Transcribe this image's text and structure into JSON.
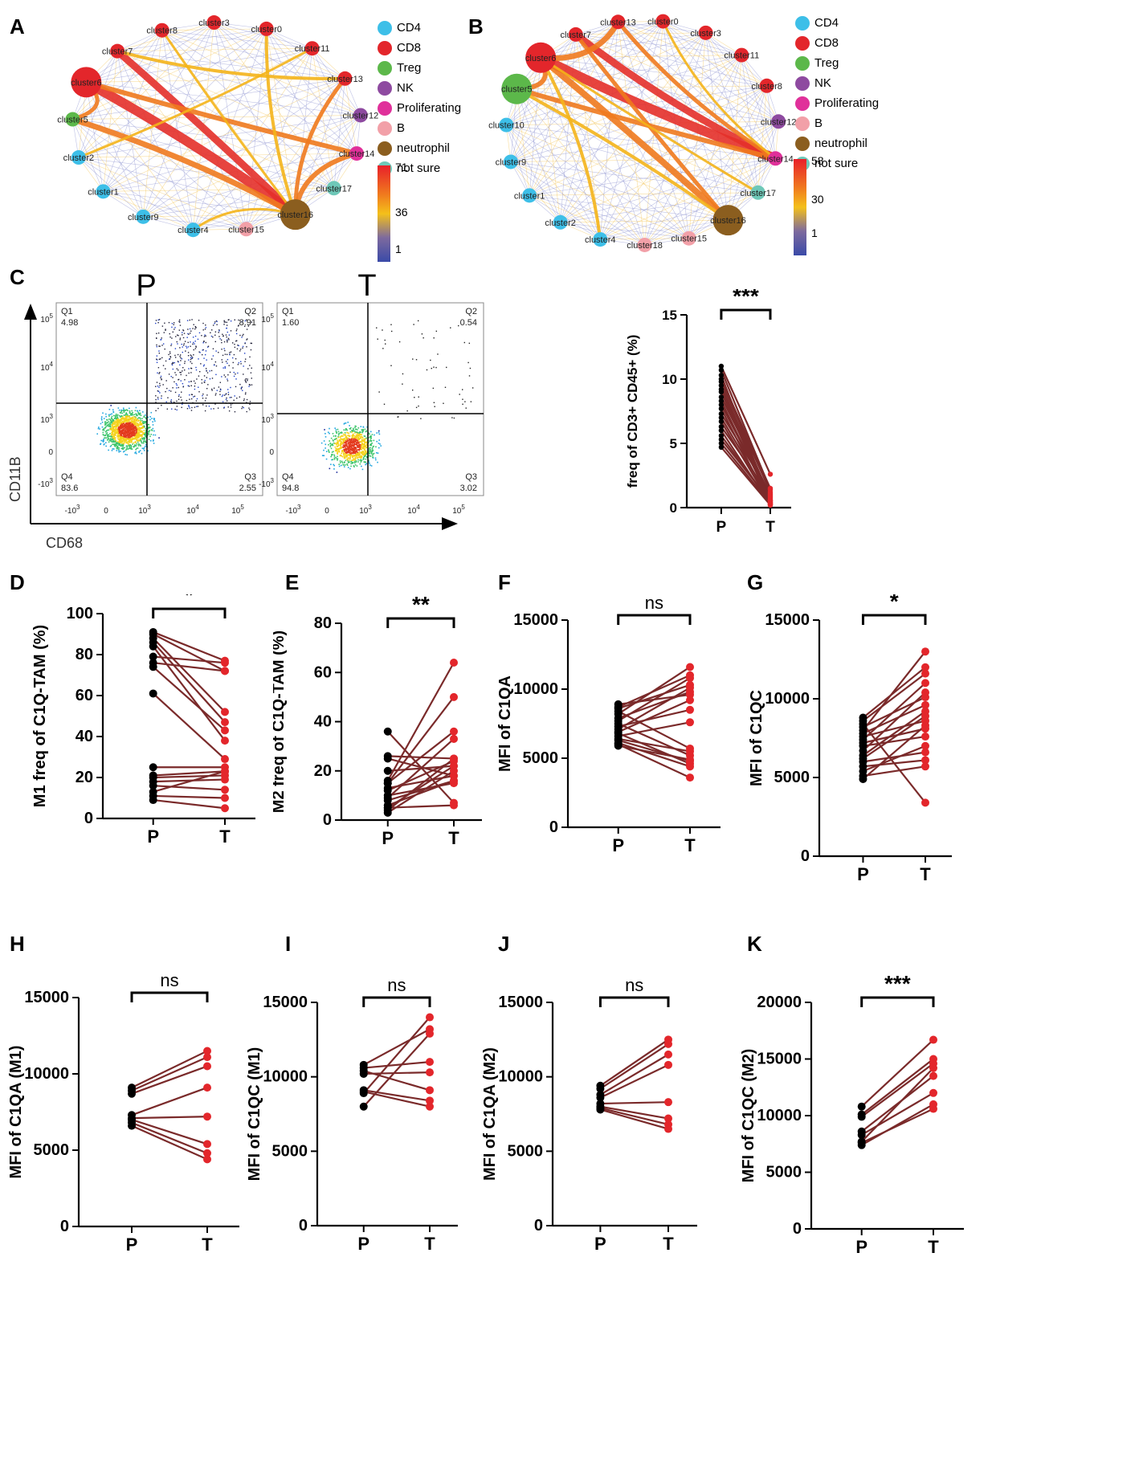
{
  "panels": {
    "A": "A",
    "B": "B",
    "C": "C",
    "D": "D",
    "E": "E",
    "F": "F",
    "G": "G",
    "H": "H",
    "I": "I",
    "J": "J",
    "K": "K"
  },
  "colors": {
    "CD4": "#3dbfe8",
    "CD8": "#e3262b",
    "Treg": "#5cb84a",
    "NK": "#8e4aa0",
    "Proliferating": "#e0309a",
    "B": "#f2a0a8",
    "neutrophil": "#8b5e1f",
    "not sure": "#6ec8b8",
    "P": "#000000",
    "T": "#e3262b",
    "line": "#7a2a2a"
  },
  "network_legend": [
    "CD4",
    "CD8",
    "Treg",
    "NK",
    "Proliferating",
    "B",
    "neutrophil",
    "not sure"
  ],
  "networkA": {
    "colorbar": {
      "max": "71",
      "mid": "36",
      "min": "1"
    },
    "nodes": [
      {
        "label": "cluster0",
        "type": "CD8"
      },
      {
        "label": "cluster11",
        "type": "CD8"
      },
      {
        "label": "cluster13",
        "type": "CD8"
      },
      {
        "label": "cluster12",
        "type": "NK"
      },
      {
        "label": "cluster14",
        "type": "Proliferating"
      },
      {
        "label": "cluster17",
        "type": "not sure"
      },
      {
        "label": "cluster16",
        "type": "neutrophil"
      },
      {
        "label": "cluster15",
        "type": "B"
      },
      {
        "label": "cluster4",
        "type": "CD4"
      },
      {
        "label": "cluster9",
        "type": "CD4"
      },
      {
        "label": "cluster1",
        "type": "CD4"
      },
      {
        "label": "cluster2",
        "type": "CD4"
      },
      {
        "label": "cluster5",
        "type": "Treg"
      },
      {
        "label": "cluster6",
        "type": "CD8"
      },
      {
        "label": "cluster7",
        "type": "CD8"
      },
      {
        "label": "cluster8",
        "type": "CD8"
      },
      {
        "label": "cluster3",
        "type": "CD8"
      }
    ]
  },
  "networkB": {
    "colorbar": {
      "max": "58",
      "mid": "30",
      "min": "1"
    },
    "nodes": [
      {
        "label": "cluster0",
        "type": "CD8"
      },
      {
        "label": "cluster3",
        "type": "CD8"
      },
      {
        "label": "cluster11",
        "type": "CD8"
      },
      {
        "label": "cluster8",
        "type": "CD8"
      },
      {
        "label": "cluster12",
        "type": "NK"
      },
      {
        "label": "cluster14",
        "type": "Proliferating"
      },
      {
        "label": "cluster17",
        "type": "not sure"
      },
      {
        "label": "cluster16",
        "type": "neutrophil"
      },
      {
        "label": "cluster15",
        "type": "B"
      },
      {
        "label": "cluster18",
        "type": "B"
      },
      {
        "label": "cluster4",
        "type": "CD4"
      },
      {
        "label": "cluster2",
        "type": "CD4"
      },
      {
        "label": "cluster1",
        "type": "CD4"
      },
      {
        "label": "cluster9",
        "type": "CD4"
      },
      {
        "label": "cluster10",
        "type": "CD4"
      },
      {
        "label": "cluster5",
        "type": "Treg"
      },
      {
        "label": "cluster6",
        "type": "CD8"
      },
      {
        "label": "cluster7",
        "type": "CD8"
      },
      {
        "label": "cluster13",
        "type": "CD8"
      }
    ]
  },
  "flow": {
    "title_P": "P",
    "title_T": "T",
    "xlabel": "CD68",
    "ylabel": "CD11B",
    "ticks_y": [
      "10^5",
      "10^4",
      "10^3",
      "0",
      "-10^3"
    ],
    "ticks_x": [
      "-10^3",
      "0",
      "10^3",
      "10^4",
      "10^5"
    ],
    "P": {
      "Q1_label": "Q1",
      "Q1": "4.98",
      "Q2_label": "Q2",
      "Q2": "8.91",
      "Q3_label": "Q3",
      "Q3": "2.55",
      "Q4_label": "Q4",
      "Q4": "83.6"
    },
    "T": {
      "Q1_label": "Q1",
      "Q1": "1.60",
      "Q2_label": "Q2",
      "Q2": "0.54",
      "Q3_label": "Q3",
      "Q3": "3.02",
      "Q4_label": "Q4",
      "Q4": "94.8"
    }
  },
  "chart_data": [
    {
      "id": "C2",
      "type": "paired",
      "ylabel": "freq of CD3+ CD45+ (%)",
      "ylim": [
        0,
        15
      ],
      "yticks": [
        "0",
        "5",
        "10",
        "15"
      ],
      "categories": [
        "P",
        "T"
      ],
      "significance": "***",
      "pairs": [
        [
          11.0,
          2.6
        ],
        [
          10.7,
          1.4
        ],
        [
          10.3,
          0.4
        ],
        [
          10.0,
          1.5
        ],
        [
          9.8,
          1.2
        ],
        [
          9.5,
          0.8
        ],
        [
          9.2,
          0.6
        ],
        [
          9.0,
          0.3
        ],
        [
          8.6,
          1.0
        ],
        [
          8.3,
          0.5
        ],
        [
          8.0,
          0.7
        ],
        [
          7.7,
          0.2
        ],
        [
          7.3,
          1.1
        ],
        [
          7.0,
          0.6
        ],
        [
          6.7,
          0.3
        ],
        [
          6.3,
          0.9
        ],
        [
          6.0,
          0.2
        ],
        [
          5.6,
          0.4
        ],
        [
          5.3,
          0.5
        ],
        [
          5.0,
          0.3
        ],
        [
          4.7,
          0.2
        ]
      ]
    },
    {
      "id": "D",
      "type": "paired",
      "ylabel": "M1 freq of C1Q-TAM (%)",
      "ylim": [
        0,
        100
      ],
      "yticks": [
        "0",
        "20",
        "40",
        "60",
        "80",
        "100"
      ],
      "categories": [
        "P",
        "T"
      ],
      "significance": "*",
      "pairs": [
        [
          91,
          77
        ],
        [
          90,
          72
        ],
        [
          88,
          52
        ],
        [
          86,
          47
        ],
        [
          84,
          38
        ],
        [
          79,
          76
        ],
        [
          76,
          72
        ],
        [
          74,
          43
        ],
        [
          61,
          29
        ],
        [
          25,
          25
        ],
        [
          21,
          23
        ],
        [
          20,
          21
        ],
        [
          18,
          19
        ],
        [
          16,
          14
        ],
        [
          13,
          23
        ],
        [
          11,
          10
        ],
        [
          9,
          5
        ]
      ]
    },
    {
      "id": "E",
      "type": "paired",
      "ylabel": "M2 freq of C1Q-TAM (%)",
      "ylim": [
        0,
        80
      ],
      "yticks": [
        "0",
        "20",
        "40",
        "60",
        "80"
      ],
      "categories": [
        "P",
        "T"
      ],
      "significance": "**",
      "pairs": [
        [
          36,
          7
        ],
        [
          26,
          25
        ],
        [
          25,
          18
        ],
        [
          20,
          22
        ],
        [
          16,
          64
        ],
        [
          15,
          50
        ],
        [
          15,
          36
        ],
        [
          13,
          18
        ],
        [
          12,
          24
        ],
        [
          10,
          15
        ],
        [
          9,
          33
        ],
        [
          8,
          16
        ],
        [
          6,
          16
        ],
        [
          5,
          22
        ],
        [
          5,
          6
        ],
        [
          4,
          25
        ],
        [
          3,
          20
        ]
      ]
    },
    {
      "id": "F",
      "type": "paired",
      "ylabel": "MFI of C1QA",
      "ylim": [
        0,
        15000
      ],
      "yticks": [
        "0",
        "5000",
        "10000",
        "15000"
      ],
      "categories": [
        "P",
        "T"
      ],
      "significance": "ns",
      "pairs": [
        [
          8900,
          9600
        ],
        [
          8700,
          11000
        ],
        [
          8600,
          10300
        ],
        [
          8400,
          5700
        ],
        [
          8200,
          11600
        ],
        [
          7900,
          9800
        ],
        [
          7700,
          10800
        ],
        [
          7500,
          5200
        ],
        [
          7300,
          8500
        ],
        [
          7100,
          10100
        ],
        [
          6900,
          9200
        ],
        [
          6800,
          4600
        ],
        [
          6600,
          7600
        ],
        [
          6400,
          5500
        ],
        [
          6300,
          4800
        ],
        [
          6100,
          4400
        ],
        [
          6000,
          3600
        ],
        [
          5900,
          4900
        ]
      ]
    },
    {
      "id": "G",
      "type": "paired",
      "ylabel": "MFI of C1QC",
      "ylim": [
        0,
        15000
      ],
      "yticks": [
        "0",
        "5000",
        "10000",
        "15000"
      ],
      "categories": [
        "P",
        "T"
      ],
      "significance": "*",
      "pairs": [
        [
          8800,
          12000
        ],
        [
          8600,
          11600
        ],
        [
          8400,
          3400
        ],
        [
          8200,
          10100
        ],
        [
          8000,
          13000
        ],
        [
          7800,
          9600
        ],
        [
          7600,
          8600
        ],
        [
          7400,
          11000
        ],
        [
          7200,
          8100
        ],
        [
          7000,
          7600
        ],
        [
          6700,
          10400
        ],
        [
          6400,
          9200
        ],
        [
          6200,
          8900
        ],
        [
          6000,
          6600
        ],
        [
          5700,
          6100
        ],
        [
          5400,
          7000
        ],
        [
          5100,
          5700
        ],
        [
          4900,
          8300
        ]
      ]
    },
    {
      "id": "H",
      "type": "paired",
      "ylabel": "MFI of C1QA (M1)",
      "ylim": [
        0,
        15000
      ],
      "yticks": [
        "0",
        "5000",
        "10000",
        "15000"
      ],
      "categories": [
        "P",
        "T"
      ],
      "significance": "ns",
      "pairs": [
        [
          9100,
          11500
        ],
        [
          8900,
          11100
        ],
        [
          8700,
          10500
        ],
        [
          7300,
          9100
        ],
        [
          7100,
          7200
        ],
        [
          7000,
          5400
        ],
        [
          6800,
          4800
        ],
        [
          6600,
          4400
        ]
      ]
    },
    {
      "id": "I",
      "type": "paired",
      "ylabel": "MFI of C1QC (M1)",
      "ylim": [
        0,
        15000
      ],
      "yticks": [
        "0",
        "5000",
        "10000",
        "15000"
      ],
      "categories": [
        "P",
        "T"
      ],
      "significance": "ns",
      "pairs": [
        [
          10800,
          13200
        ],
        [
          10600,
          11000
        ],
        [
          10400,
          9100
        ],
        [
          10200,
          10300
        ],
        [
          9100,
          8400
        ],
        [
          8900,
          14000
        ],
        [
          8000,
          12900
        ],
        [
          9000,
          8000
        ]
      ]
    },
    {
      "id": "J",
      "type": "paired",
      "ylabel": "MFI of C1QA (M2)",
      "ylim": [
        0,
        15000
      ],
      "yticks": [
        "0",
        "5000",
        "10000",
        "15000"
      ],
      "categories": [
        "P",
        "T"
      ],
      "significance": "ns",
      "pairs": [
        [
          9400,
          12500
        ],
        [
          9200,
          12200
        ],
        [
          8800,
          11500
        ],
        [
          8600,
          10800
        ],
        [
          8200,
          8300
        ],
        [
          8000,
          7200
        ],
        [
          7900,
          6800
        ],
        [
          7800,
          6500
        ]
      ]
    },
    {
      "id": "K",
      "type": "paired",
      "ylabel": "MFI of C1QC (M2)",
      "ylim": [
        0,
        20000
      ],
      "yticks": [
        "0",
        "5000",
        "10000",
        "15000",
        "20000"
      ],
      "categories": [
        "P",
        "T"
      ],
      "significance": "***",
      "pairs": [
        [
          10800,
          16700
        ],
        [
          10100,
          15000
        ],
        [
          9900,
          14600
        ],
        [
          8600,
          13500
        ],
        [
          8300,
          12000
        ],
        [
          7700,
          14200
        ],
        [
          7600,
          10600
        ],
        [
          7400,
          11000
        ]
      ]
    }
  ]
}
